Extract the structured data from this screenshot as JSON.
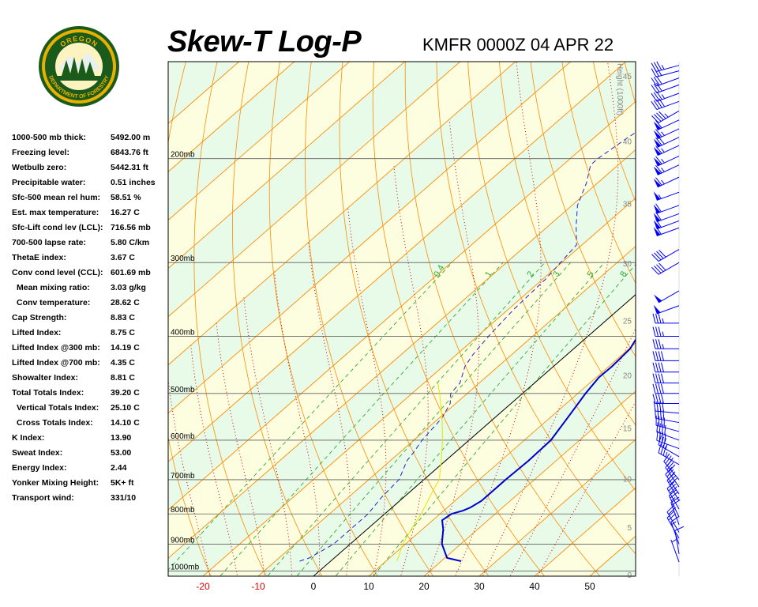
{
  "header": {
    "title": "Skew-T Log-P",
    "station_time": "KMFR 0000Z 04 APR 22"
  },
  "logo": {
    "top_text": "OREGON",
    "bottom_text": "DEPARTMENT OF FORESTRY"
  },
  "indices": [
    {
      "label": "1000-500 mb thick:",
      "value": "5492.00 m",
      "indent": false
    },
    {
      "label": "Freezing level:",
      "value": "6843.76 ft",
      "indent": false
    },
    {
      "label": "Wetbulb zero:",
      "value": "5442.31 ft",
      "indent": false
    },
    {
      "label": "Precipitable water:",
      "value": "0.51 inches",
      "indent": false
    },
    {
      "label": "Sfc-500 mean rel hum:",
      "value": "58.51 %",
      "indent": false
    },
    {
      "label": "Est. max temperature:",
      "value": "16.27 C",
      "indent": false
    },
    {
      "label": "Sfc-Lift cond lev (LCL):",
      "value": "716.56 mb",
      "indent": false
    },
    {
      "label": "700-500 lapse rate:",
      "value": "5.80 C/km",
      "indent": false
    },
    {
      "label": "ThetaE index:",
      "value": "3.67 C",
      "indent": false
    },
    {
      "label": "Conv cond level (CCL):",
      "value": "601.69 mb",
      "indent": false
    },
    {
      "label": "Mean mixing ratio:",
      "value": "3.03 g/kg",
      "indent": true
    },
    {
      "label": "Conv temperature:",
      "value": "28.62 C",
      "indent": true
    },
    {
      "label": "Cap Strength:",
      "value": "8.83 C",
      "indent": false
    },
    {
      "label": "Lifted Index:",
      "value": "8.75 C",
      "indent": false
    },
    {
      "label": "Lifted Index @300 mb:",
      "value": "14.19 C",
      "indent": false
    },
    {
      "label": "Lifted Index @700 mb:",
      "value": "4.35 C",
      "indent": false
    },
    {
      "label": "Showalter Index:",
      "value": "8.81 C",
      "indent": false
    },
    {
      "label": "Total Totals Index:",
      "value": "39.20 C",
      "indent": false
    },
    {
      "label": "Vertical Totals Index:",
      "value": "25.10 C",
      "indent": true
    },
    {
      "label": "Cross Totals Index:",
      "value": "14.10 C",
      "indent": true
    },
    {
      "label": "K Index:",
      "value": "13.90",
      "indent": false
    },
    {
      "label": "Sweat Index:",
      "value": "53.00",
      "indent": false
    },
    {
      "label": "Energy Index:",
      "value": "2.44",
      "indent": false
    },
    {
      "label": "Yonker Mixing Height:",
      "value": "5K+ ft",
      "indent": false
    },
    {
      "label": "Transport wind:",
      "value": "331/10",
      "indent": false
    }
  ],
  "chart_data": {
    "type": "line",
    "subtype": "skew-t log-p",
    "title": "Skew-T Log-P",
    "subtitle": "KMFR 0000Z 04 APR 22",
    "xlabel": "",
    "ylabel": "",
    "x_ticks": [
      "-20",
      "-10",
      "0",
      "10",
      "20",
      "30",
      "40",
      "50"
    ],
    "x_tick_values": [
      -20,
      -10,
      0,
      10,
      20,
      30,
      40,
      50
    ],
    "pressure_labels": [
      "200mb",
      "300mb",
      "400mb",
      "500mb",
      "600mb",
      "700mb",
      "800mb",
      "900mb",
      "1000mb"
    ],
    "pressure_levels": [
      200,
      300,
      400,
      500,
      600,
      700,
      800,
      900,
      1000
    ],
    "height_axis_title": "Height (1000ft)",
    "height_ticks": [
      "0",
      "5",
      "10",
      "15",
      "20",
      "25",
      "30",
      "35",
      "40",
      "45",
      "50"
    ],
    "height_tick_values": [
      0,
      5,
      10,
      15,
      20,
      25,
      30,
      35,
      40,
      45,
      50
    ],
    "mixing_ratio_labels": [
      "0.4",
      "1",
      "2",
      "3",
      "5",
      "8"
    ],
    "mixing_ratio_values": [
      0.4,
      1,
      2,
      3,
      5,
      8
    ],
    "ylim": [
      1020,
      137
    ],
    "xlim_at_bottom": [
      -26,
      58
    ],
    "grid": true,
    "colors": {
      "temperature": "#0000cc",
      "dewpoint": "#2222cc",
      "parcel": "#e6e600",
      "isobars": "#606060",
      "isotherms": "#ff8c00",
      "dry_adiabats": "#ff8c00",
      "moist_adiabats": "#cc0000",
      "mixing_ratio": "#33aa33",
      "zero_isotherm": "#000000",
      "bg_warm": "#fdfde0",
      "bg_cool": "#e8fae8",
      "wind_barbs": "#0000ff"
    },
    "series": [
      {
        "name": "",
        "role": "temperature",
        "style": "solid",
        "points": [
          [
            962,
            23.6
          ],
          [
            950,
            20.4
          ],
          [
            900,
            16.6
          ],
          [
            850,
            13.8
          ],
          [
            820,
            11.7
          ],
          [
            800,
            12.1
          ],
          [
            790,
            13.5
          ],
          [
            780,
            14.2
          ],
          [
            760,
            14.8
          ],
          [
            700,
            14.8
          ],
          [
            650,
            15.0
          ],
          [
            600,
            14.8
          ],
          [
            550,
            13.2
          ],
          [
            500,
            11.4
          ],
          [
            470,
            10.5
          ],
          [
            450,
            10.6
          ],
          [
            420,
            10.2
          ],
          [
            400,
            9.0
          ],
          [
            350,
            5.9
          ],
          [
            300,
            2.5
          ],
          [
            260,
            -0.5
          ],
          [
            240,
            -2.0
          ],
          [
            220,
            -2.6
          ],
          [
            200,
            -3.0
          ],
          [
            190,
            -2.0
          ],
          [
            185,
            0.0
          ],
          [
            180,
            1.8
          ],
          [
            175,
            3.5
          ],
          [
            170,
            3.4
          ],
          [
            165,
            4.5
          ],
          [
            160,
            5.6
          ],
          [
            155,
            6.0
          ],
          [
            150,
            7.0
          ],
          [
            145,
            8.4
          ],
          [
            140,
            10.6
          ],
          [
            137,
            12.5
          ]
        ]
      },
      {
        "name": "",
        "role": "dewpoint",
        "style": "dashed",
        "points": [
          [
            962,
            -5.6
          ],
          [
            950,
            -4.5
          ],
          [
            900,
            -3.0
          ],
          [
            850,
            -3.0
          ],
          [
            800,
            -3.0
          ],
          [
            750,
            -4.0
          ],
          [
            700,
            -4.5
          ],
          [
            650,
            -7.0
          ],
          [
            630,
            -7.5
          ],
          [
            600,
            -8.5
          ],
          [
            550,
            -9.5
          ],
          [
            520,
            -11.0
          ],
          [
            500,
            -13.0
          ],
          [
            480,
            -13.5
          ],
          [
            450,
            -16.0
          ],
          [
            430,
            -17.0
          ],
          [
            400,
            -18.0
          ],
          [
            360,
            -19.0
          ],
          [
            320,
            -19.5
          ],
          [
            280,
            -21.0
          ],
          [
            260,
            -25.0
          ],
          [
            240,
            -29.0
          ],
          [
            220,
            -32.0
          ],
          [
            205,
            -35.0
          ],
          [
            200,
            -35.0
          ],
          [
            185,
            -34.0
          ],
          [
            175,
            -33.0
          ],
          [
            165,
            -30.0
          ],
          [
            155,
            -26.0
          ],
          [
            145,
            -21.0
          ],
          [
            137,
            -15.0
          ]
        ]
      },
      {
        "name": "",
        "role": "parcel",
        "style": "solid",
        "points": [
          [
            962,
            12.0
          ],
          [
            900,
            9.5
          ],
          [
            850,
            8.0
          ],
          [
            800,
            6.6
          ],
          [
            720,
            3.5
          ],
          [
            700,
            2.8
          ],
          [
            650,
            -0.8
          ],
          [
            600,
            -4.8
          ],
          [
            550,
            -9.5
          ],
          [
            500,
            -15.0
          ],
          [
            480,
            -17.5
          ]
        ]
      }
    ],
    "wind_barbs": [
      {
        "pressure": 965,
        "dir": 340,
        "speed": 5
      },
      {
        "pressure": 935,
        "dir": 350,
        "speed": 10
      },
      {
        "pressure": 900,
        "dir": 340,
        "speed": 15
      },
      {
        "pressure": 880,
        "dir": 330,
        "speed": 20
      },
      {
        "pressure": 860,
        "dir": 330,
        "speed": 20
      },
      {
        "pressure": 835,
        "dir": 340,
        "speed": 20
      },
      {
        "pressure": 810,
        "dir": 335,
        "speed": 25
      },
      {
        "pressure": 785,
        "dir": 330,
        "speed": 30
      },
      {
        "pressure": 760,
        "dir": 330,
        "speed": 30
      },
      {
        "pressure": 740,
        "dir": 325,
        "speed": 30
      },
      {
        "pressure": 720,
        "dir": 325,
        "speed": 30
      },
      {
        "pressure": 700,
        "dir": 320,
        "speed": 30
      },
      {
        "pressure": 660,
        "dir": 300,
        "speed": 35
      },
      {
        "pressure": 640,
        "dir": 300,
        "speed": 35
      },
      {
        "pressure": 620,
        "dir": 290,
        "speed": 40
      },
      {
        "pressure": 600,
        "dir": 290,
        "speed": 40
      },
      {
        "pressure": 580,
        "dir": 285,
        "speed": 40
      },
      {
        "pressure": 560,
        "dir": 280,
        "speed": 40
      },
      {
        "pressure": 540,
        "dir": 275,
        "speed": 40
      },
      {
        "pressure": 520,
        "dir": 270,
        "speed": 40
      },
      {
        "pressure": 500,
        "dir": 270,
        "speed": 40
      },
      {
        "pressure": 480,
        "dir": 270,
        "speed": 40
      },
      {
        "pressure": 460,
        "dir": 270,
        "speed": 40
      },
      {
        "pressure": 440,
        "dir": 270,
        "speed": 40
      },
      {
        "pressure": 420,
        "dir": 270,
        "speed": 35
      },
      {
        "pressure": 400,
        "dir": 270,
        "speed": 35
      },
      {
        "pressure": 380,
        "dir": 270,
        "speed": 35
      },
      {
        "pressure": 355,
        "dir": 250,
        "speed": 50
      },
      {
        "pressure": 335,
        "dir": 240,
        "speed": 50
      },
      {
        "pressure": 300,
        "dir": 240,
        "speed": 40
      },
      {
        "pressure": 285,
        "dir": 240,
        "speed": 40
      },
      {
        "pressure": 262,
        "dir": 250,
        "speed": 60
      },
      {
        "pressure": 255,
        "dir": 250,
        "speed": 60
      },
      {
        "pressure": 248,
        "dir": 250,
        "speed": 60
      },
      {
        "pressure": 240,
        "dir": 250,
        "speed": 60
      },
      {
        "pressure": 228,
        "dir": 250,
        "speed": 55
      },
      {
        "pressure": 215,
        "dir": 245,
        "speed": 65
      },
      {
        "pressure": 205,
        "dir": 245,
        "speed": 65
      },
      {
        "pressure": 198,
        "dir": 245,
        "speed": 65
      },
      {
        "pressure": 190,
        "dir": 245,
        "speed": 65
      },
      {
        "pressure": 184,
        "dir": 245,
        "speed": 70
      },
      {
        "pressure": 178,
        "dir": 245,
        "speed": 65
      },
      {
        "pressure": 172,
        "dir": 245,
        "speed": 60
      },
      {
        "pressure": 166,
        "dir": 240,
        "speed": 45
      },
      {
        "pressure": 160,
        "dir": 250,
        "speed": 40
      },
      {
        "pressure": 155,
        "dir": 250,
        "speed": 35
      },
      {
        "pressure": 150,
        "dir": 250,
        "speed": 30
      },
      {
        "pressure": 146,
        "dir": 250,
        "speed": 30
      },
      {
        "pressure": 142,
        "dir": 255,
        "speed": 30
      },
      {
        "pressure": 139,
        "dir": 255,
        "speed": 35
      }
    ]
  }
}
